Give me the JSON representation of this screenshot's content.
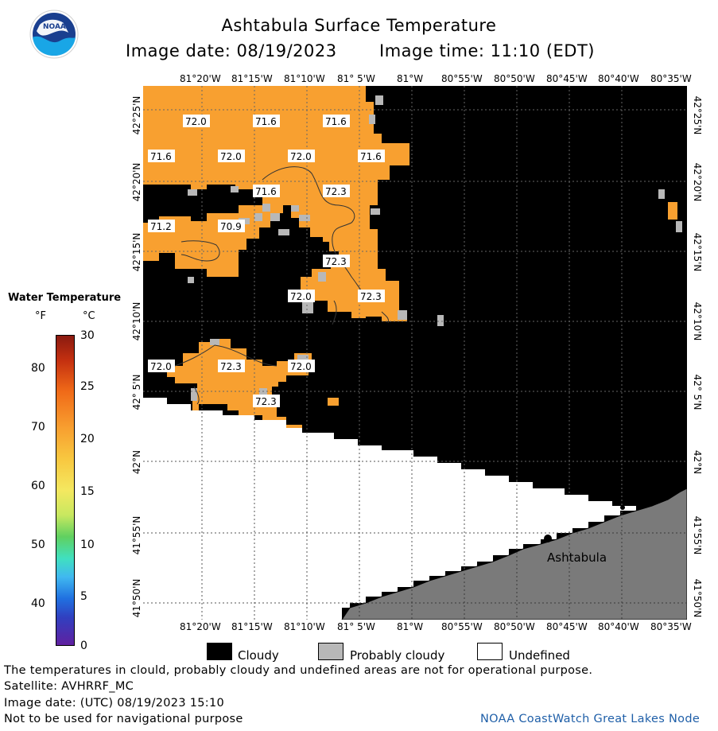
{
  "header": {
    "title": "Ashtabula Surface Temperature",
    "image_date": "Image date: 08/19/2023",
    "image_time": "Image time: 11:10 (EDT)",
    "logo_text": "NOAA"
  },
  "map": {
    "lon_labels": [
      "81°20'W",
      "81°15'W",
      "81°10'W",
      "81° 5'W",
      "81°W",
      "80°55'W",
      "80°50'W",
      "80°45'W",
      "80°40'W",
      "80°35'W"
    ],
    "lat_labels": [
      "42°25'N",
      "42°20'N",
      "42°15'N",
      "42°10'N",
      "42° 5'N",
      "42°N",
      "41°55'N",
      "41°50'N"
    ],
    "place_label": "Ashtabula",
    "temperature_labels": [
      "72.0",
      "71.6",
      "71.6",
      "71.6",
      "72.0",
      "72.0",
      "71.6",
      "71.6",
      "72.3",
      "71.2",
      "70.9",
      "72.3",
      "72.0",
      "72.3",
      "72.0",
      "72.3",
      "72.0",
      "72.3"
    ],
    "colors": {
      "water_warm": "#f8a030",
      "cloudy": "#000000",
      "probably_cloudy": "#b8b8b8",
      "undefined": "#ffffff",
      "land": "#7a7a7a"
    }
  },
  "legend": {
    "title": "Water Temperature",
    "unit_f": "°F",
    "unit_c": "°C",
    "f_ticks": [
      "80",
      "70",
      "60",
      "50",
      "40"
    ],
    "c_ticks": [
      "30",
      "25",
      "20",
      "15",
      "10",
      "5",
      "0"
    ]
  },
  "key": {
    "cloudy": "Cloudy",
    "probably_cloudy": "Probably cloudy",
    "undefined": "Undefined"
  },
  "footer": {
    "line1": "The temperatures in clould, probably cloudy and undefined areas are not for operational purpose.",
    "line2": "Satellite: AVHRRF_MC",
    "line3": "Image date: (UTC) 08/19/2023  15:10",
    "line4": "Not to be used for navigational purpose",
    "credit": "NOAA CoastWatch Great Lakes Node"
  }
}
